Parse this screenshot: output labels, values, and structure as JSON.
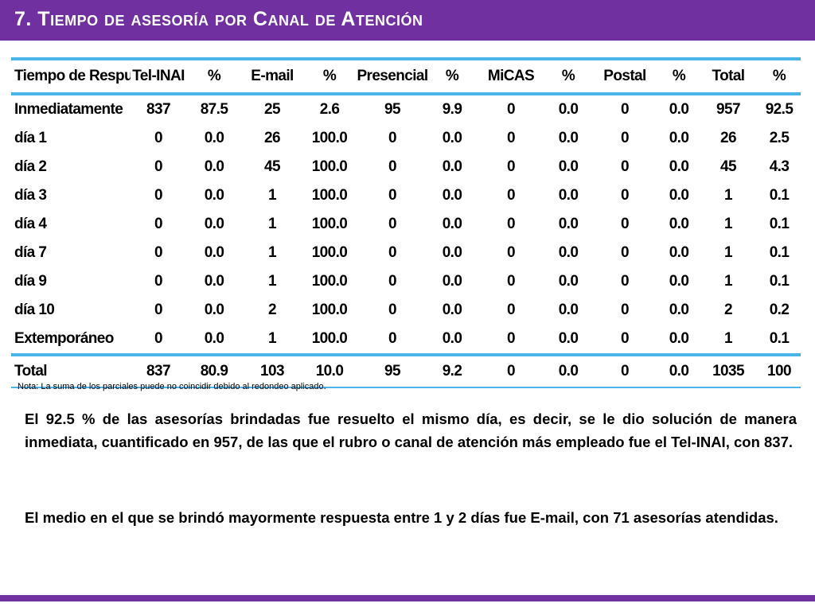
{
  "header": {
    "title": "7. Tiempo de asesoría por Canal de Atención"
  },
  "table": {
    "headers": [
      "Tiempo de Respuesta",
      "Tel-INAI",
      "%",
      "E-mail",
      "%",
      "Presencial",
      "%",
      "MiCAS",
      "%",
      "Postal",
      "%",
      "Total",
      "%"
    ],
    "rows": [
      [
        "Inmediatamente",
        "837",
        "87.5",
        "25",
        "2.6",
        "95",
        "9.9",
        "0",
        "0.0",
        "0",
        "0.0",
        "957",
        "92.5"
      ],
      [
        "día 1",
        "0",
        "0.0",
        "26",
        "100.0",
        "0",
        "0.0",
        "0",
        "0.0",
        "0",
        "0.0",
        "26",
        "2.5"
      ],
      [
        "día 2",
        "0",
        "0.0",
        "45",
        "100.0",
        "0",
        "0.0",
        "0",
        "0.0",
        "0",
        "0.0",
        "45",
        "4.3"
      ],
      [
        "día 3",
        "0",
        "0.0",
        "1",
        "100.0",
        "0",
        "0.0",
        "0",
        "0.0",
        "0",
        "0.0",
        "1",
        "0.1"
      ],
      [
        "día 4",
        "0",
        "0.0",
        "1",
        "100.0",
        "0",
        "0.0",
        "0",
        "0.0",
        "0",
        "0.0",
        "1",
        "0.1"
      ],
      [
        "día 7",
        "0",
        "0.0",
        "1",
        "100.0",
        "0",
        "0.0",
        "0",
        "0.0",
        "0",
        "0.0",
        "1",
        "0.1"
      ],
      [
        "día 9",
        "0",
        "0.0",
        "1",
        "100.0",
        "0",
        "0.0",
        "0",
        "0.0",
        "0",
        "0.0",
        "1",
        "0.1"
      ],
      [
        "día 10",
        "0",
        "0.0",
        "2",
        "100.0",
        "0",
        "0.0",
        "0",
        "0.0",
        "0",
        "0.0",
        "2",
        "0.2"
      ],
      [
        "Extemporáneo",
        "0",
        "0.0",
        "1",
        "100.0",
        "0",
        "0.0",
        "0",
        "0.0",
        "0",
        "0.0",
        "1",
        "0.1"
      ]
    ],
    "total": [
      "Total",
      "837",
      "80.9",
      "103",
      "10.0",
      "95",
      "9.2",
      "0",
      "0.0",
      "0",
      "0.0",
      "1035",
      "100"
    ]
  },
  "note": "Nota: La suma de los parciales puede no coincidir debido al redondeo aplicado.",
  "paragraphs": [
    "El 92.5 % de las asesorías brindadas fue resuelto el mismo día, es decir, se le dio solución de manera inmediata, cuantificado en 957, de las que el rubro o canal de atención más empleado fue el Tel-INAI, con 837.",
    "El medio en el que se brindó mayormente respuesta entre 1 y 2 días fue E-mail, con 71 asesorías atendidas."
  ],
  "colors": {
    "brand": "#7030a0",
    "table_rule": "#4ab3e8"
  }
}
